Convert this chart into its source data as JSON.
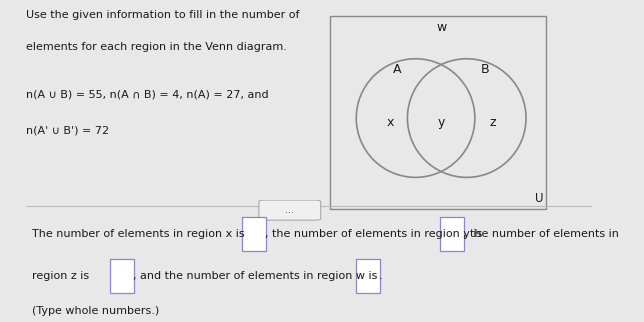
{
  "title_line1": "Use the given information to fill in the number of",
  "title_line2": "elements for each region in the Venn diagram.",
  "given_line1": "n(A ∪ B) = 55, n(A ∩ B) = 4, n(A) = 27, and",
  "given_line2": "n(A' ∪ B') = 72",
  "label_A": "A",
  "label_B": "B",
  "label_x": "x",
  "label_y": "y",
  "label_z": "z",
  "label_w": "w",
  "label_U": "U",
  "bottom_text1": "The number of elements in region x is",
  "bottom_text2": ", the number of elements in region y is",
  "bottom_text3": ", the number of elements in",
  "bottom_text4": "region z is",
  "bottom_text5": ", and the number of elements in region w is",
  "bottom_text6": ".",
  "bottom_note": "(Type whole numbers.)",
  "bg_color": "#e8e8e8",
  "venn_bg": "#e8e8e8",
  "rect_facecolor": "#e8e8e8",
  "rect_edgecolor": "#888888",
  "circle_edge_color": "#888888",
  "text_color": "#1a1a1a",
  "box_bg": "#ffffff",
  "box_edge": "#8888cc",
  "dots_color": "#555555",
  "sep_line_color": "#bbbbbb",
  "left_bar_color": "#e8c860",
  "icon_color": "#888888"
}
